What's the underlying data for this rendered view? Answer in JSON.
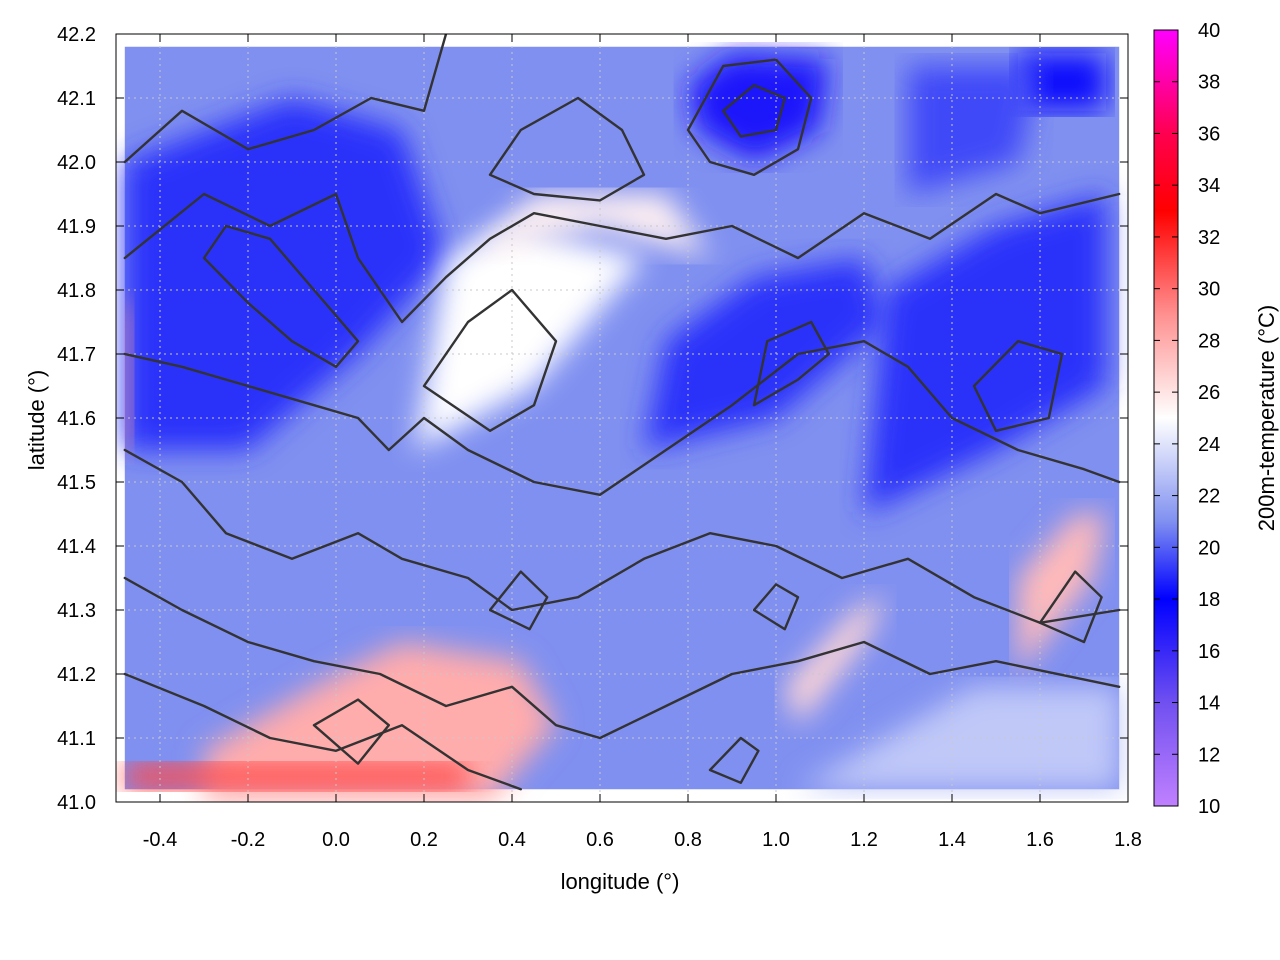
{
  "chart_data": {
    "type": "heatmap",
    "xlabel": "longitude (°)",
    "ylabel": "latitude (°)",
    "colorbar_label": "200m-temperature (°C)",
    "xlim": [
      -0.5,
      1.8
    ],
    "ylim": [
      41.0,
      42.2
    ],
    "x_ticks": [
      "-0.4",
      "-0.2",
      "0.0",
      "0.2",
      "0.4",
      "0.6",
      "0.8",
      "1.0",
      "1.2",
      "1.4",
      "1.6",
      "1.8"
    ],
    "x_tick_values": [
      -0.4,
      -0.2,
      0.0,
      0.2,
      0.4,
      0.6,
      0.8,
      1.0,
      1.2,
      1.4,
      1.6,
      1.8
    ],
    "y_ticks": [
      "41.0",
      "41.1",
      "41.2",
      "41.3",
      "41.4",
      "41.5",
      "41.6",
      "41.7",
      "41.8",
      "41.9",
      "42.0",
      "42.1",
      "42.2"
    ],
    "y_tick_values": [
      41.0,
      41.1,
      41.2,
      41.3,
      41.4,
      41.5,
      41.6,
      41.7,
      41.8,
      41.9,
      42.0,
      42.1,
      42.2
    ],
    "colorbar": {
      "range": [
        10,
        40
      ],
      "ticks": [
        "10",
        "12",
        "14",
        "16",
        "18",
        "20",
        "22",
        "24",
        "26",
        "28",
        "30",
        "32",
        "34",
        "36",
        "38",
        "40"
      ],
      "tick_values": [
        10,
        12,
        14,
        16,
        18,
        20,
        22,
        24,
        26,
        28,
        30,
        32,
        34,
        36,
        38,
        40
      ],
      "stops": [
        {
          "value": 10,
          "color": "#c080ff"
        },
        {
          "value": 14,
          "color": "#7050f0"
        },
        {
          "value": 18,
          "color": "#0000ff"
        },
        {
          "value": 21,
          "color": "#8090f0"
        },
        {
          "value": 25,
          "color": "#ffffff"
        },
        {
          "value": 29,
          "color": "#ff9090"
        },
        {
          "value": 33,
          "color": "#ff0000"
        },
        {
          "value": 36,
          "color": "#ff0050"
        },
        {
          "value": 40,
          "color": "#ff00ff"
        }
      ]
    },
    "grid": true,
    "contours": true,
    "regions": [
      {
        "name": "domain-background",
        "temperature": 21,
        "polygon": [
          [
            -0.48,
            41.02
          ],
          [
            1.78,
            41.02
          ],
          [
            1.78,
            42.18
          ],
          [
            -0.48,
            42.18
          ]
        ]
      },
      {
        "name": "northwest-cool-zone",
        "temperature": 19,
        "polygon": [
          [
            -0.48,
            41.55
          ],
          [
            -0.2,
            41.55
          ],
          [
            0.05,
            41.7
          ],
          [
            0.25,
            41.85
          ],
          [
            0.15,
            42.05
          ],
          [
            -0.1,
            42.1
          ],
          [
            -0.48,
            42.0
          ]
        ]
      },
      {
        "name": "central-cool-zone",
        "temperature": 19,
        "polygon": [
          [
            0.7,
            41.55
          ],
          [
            1.0,
            41.6
          ],
          [
            1.25,
            41.75
          ],
          [
            1.2,
            41.85
          ],
          [
            0.95,
            41.82
          ],
          [
            0.75,
            41.72
          ]
        ]
      },
      {
        "name": "east-cool-zone",
        "temperature": 19,
        "polygon": [
          [
            1.2,
            41.45
          ],
          [
            1.5,
            41.55
          ],
          [
            1.75,
            41.65
          ],
          [
            1.75,
            41.95
          ],
          [
            1.5,
            41.9
          ],
          [
            1.25,
            41.8
          ]
        ]
      },
      {
        "name": "north-cold-core",
        "temperature": 17,
        "polygon": [
          [
            0.82,
            42.05
          ],
          [
            0.95,
            42.0
          ],
          [
            1.1,
            42.05
          ],
          [
            1.12,
            42.16
          ],
          [
            0.9,
            42.17
          ],
          [
            0.8,
            42.12
          ]
        ]
      },
      {
        "name": "northeast-cold-core",
        "temperature": 17.5,
        "polygon": [
          [
            1.55,
            42.08
          ],
          [
            1.75,
            42.08
          ],
          [
            1.75,
            42.17
          ],
          [
            1.55,
            42.17
          ]
        ]
      },
      {
        "name": "northeast-cool-zone",
        "temperature": 19.5,
        "polygon": [
          [
            1.3,
            41.95
          ],
          [
            1.55,
            42.0
          ],
          [
            1.6,
            42.15
          ],
          [
            1.3,
            42.15
          ]
        ]
      },
      {
        "name": "central-warm-band",
        "temperature": 25,
        "polygon": [
          [
            0.18,
            41.55
          ],
          [
            0.45,
            41.65
          ],
          [
            0.7,
            41.85
          ],
          [
            0.4,
            41.9
          ],
          [
            0.25,
            41.85
          ]
        ]
      },
      {
        "name": "north-warm-band",
        "temperature": 25.5,
        "polygon": [
          [
            0.3,
            41.85
          ],
          [
            0.6,
            41.9
          ],
          [
            0.85,
            41.85
          ],
          [
            0.75,
            41.95
          ],
          [
            0.45,
            41.95
          ]
        ]
      },
      {
        "name": "south-warm-patch",
        "temperature": 28,
        "polygon": [
          [
            -0.3,
            41.0
          ],
          [
            0.35,
            41.0
          ],
          [
            0.5,
            41.12
          ],
          [
            0.42,
            41.22
          ],
          [
            0.15,
            41.25
          ],
          [
            -0.05,
            41.18
          ],
          [
            -0.3,
            41.08
          ]
        ]
      },
      {
        "name": "southwest-warm-corner",
        "temperature": 31,
        "polygon": [
          [
            -0.48,
            41.02
          ],
          [
            0.3,
            41.02
          ],
          [
            0.3,
            41.06
          ],
          [
            -0.48,
            41.06
          ]
        ]
      },
      {
        "name": "west-edge-warm-strip",
        "temperature": 29,
        "polygon": [
          [
            -0.48,
            41.55
          ],
          [
            -0.46,
            41.55
          ],
          [
            -0.46,
            41.78
          ],
          [
            -0.48,
            41.78
          ]
        ]
      },
      {
        "name": "southeast-warm-patch",
        "temperature": 27.5,
        "polygon": [
          [
            1.55,
            41.2
          ],
          [
            1.72,
            41.35
          ],
          [
            1.75,
            41.45
          ],
          [
            1.68,
            41.45
          ],
          [
            1.55,
            41.35
          ]
        ]
      },
      {
        "name": "southeast-sea",
        "temperature": 23,
        "polygon": [
          [
            1.05,
            41.02
          ],
          [
            1.78,
            41.02
          ],
          [
            1.78,
            41.18
          ],
          [
            1.45,
            41.18
          ],
          [
            1.25,
            41.1
          ]
        ]
      },
      {
        "name": "coastal-warm-strip",
        "temperature": 26.5,
        "polygon": [
          [
            1.05,
            41.12
          ],
          [
            1.2,
            41.25
          ],
          [
            1.25,
            41.32
          ],
          [
            1.18,
            41.3
          ],
          [
            1.02,
            41.18
          ]
        ]
      }
    ],
    "contour_lines": [
      [
        [
          -0.48,
          42.0
        ],
        [
          -0.35,
          42.08
        ],
        [
          -0.2,
          42.02
        ],
        [
          -0.05,
          42.05
        ],
        [
          0.08,
          42.1
        ],
        [
          0.2,
          42.08
        ],
        [
          0.25,
          42.2
        ]
      ],
      [
        [
          -0.48,
          41.85
        ],
        [
          -0.3,
          41.95
        ],
        [
          -0.15,
          41.9
        ],
        [
          0.0,
          41.95
        ],
        [
          0.05,
          41.85
        ],
        [
          0.15,
          41.75
        ],
        [
          0.25,
          41.82
        ],
        [
          0.35,
          41.88
        ],
        [
          0.45,
          41.92
        ],
        [
          0.6,
          41.9
        ],
        [
          0.75,
          41.88
        ],
        [
          0.9,
          41.9
        ],
        [
          1.05,
          41.85
        ],
        [
          1.2,
          41.92
        ],
        [
          1.35,
          41.88
        ],
        [
          1.5,
          41.95
        ],
        [
          1.6,
          41.92
        ],
        [
          1.78,
          41.95
        ]
      ],
      [
        [
          -0.48,
          41.7
        ],
        [
          -0.35,
          41.68
        ],
        [
          -0.2,
          41.65
        ],
        [
          -0.05,
          41.62
        ],
        [
          0.05,
          41.6
        ],
        [
          0.12,
          41.55
        ],
        [
          0.2,
          41.6
        ],
        [
          0.3,
          41.55
        ],
        [
          0.45,
          41.5
        ],
        [
          0.6,
          41.48
        ],
        [
          0.75,
          41.55
        ],
        [
          0.9,
          41.62
        ],
        [
          1.05,
          41.7
        ],
        [
          1.2,
          41.72
        ],
        [
          1.3,
          41.68
        ],
        [
          1.4,
          41.6
        ],
        [
          1.55,
          41.55
        ],
        [
          1.7,
          41.52
        ],
        [
          1.78,
          41.5
        ]
      ],
      [
        [
          -0.48,
          41.55
        ],
        [
          -0.35,
          41.5
        ],
        [
          -0.25,
          41.42
        ],
        [
          -0.1,
          41.38
        ],
        [
          0.05,
          41.42
        ],
        [
          0.15,
          41.38
        ],
        [
          0.3,
          41.35
        ],
        [
          0.4,
          41.3
        ],
        [
          0.55,
          41.32
        ],
        [
          0.7,
          41.38
        ],
        [
          0.85,
          41.42
        ],
        [
          1.0,
          41.4
        ],
        [
          1.15,
          41.35
        ],
        [
          1.3,
          41.38
        ],
        [
          1.45,
          41.32
        ],
        [
          1.6,
          41.28
        ],
        [
          1.78,
          41.3
        ]
      ],
      [
        [
          -0.48,
          41.35
        ],
        [
          -0.35,
          41.3
        ],
        [
          -0.2,
          41.25
        ],
        [
          -0.05,
          41.22
        ],
        [
          0.1,
          41.2
        ],
        [
          0.25,
          41.15
        ],
        [
          0.4,
          41.18
        ],
        [
          0.5,
          41.12
        ],
        [
          0.6,
          41.1
        ],
        [
          0.75,
          41.15
        ],
        [
          0.9,
          41.2
        ],
        [
          1.05,
          41.22
        ],
        [
          1.2,
          41.25
        ],
        [
          1.35,
          41.2
        ],
        [
          1.5,
          41.22
        ],
        [
          1.78,
          41.18
        ]
      ],
      [
        [
          -0.48,
          41.2
        ],
        [
          -0.3,
          41.15
        ],
        [
          -0.15,
          41.1
        ],
        [
          0.0,
          41.08
        ],
        [
          0.15,
          41.12
        ],
        [
          0.3,
          41.05
        ],
        [
          0.42,
          41.02
        ]
      ],
      [
        [
          0.8,
          42.05
        ],
        [
          0.88,
          42.15
        ],
        [
          1.0,
          42.16
        ],
        [
          1.08,
          42.1
        ],
        [
          1.05,
          42.02
        ],
        [
          0.95,
          41.98
        ],
        [
          0.85,
          42.0
        ],
        [
          0.8,
          42.05
        ]
      ],
      [
        [
          0.88,
          42.08
        ],
        [
          0.95,
          42.12
        ],
        [
          1.02,
          42.1
        ],
        [
          1.0,
          42.05
        ],
        [
          0.92,
          42.04
        ],
        [
          0.88,
          42.08
        ]
      ],
      [
        [
          0.35,
          41.98
        ],
        [
          0.42,
          42.05
        ],
        [
          0.55,
          42.1
        ],
        [
          0.65,
          42.05
        ],
        [
          0.7,
          41.98
        ],
        [
          0.6,
          41.94
        ],
        [
          0.45,
          41.95
        ],
        [
          0.35,
          41.98
        ]
      ],
      [
        [
          -0.3,
          41.85
        ],
        [
          -0.2,
          41.78
        ],
        [
          -0.1,
          41.72
        ],
        [
          0.0,
          41.68
        ],
        [
          0.05,
          41.72
        ],
        [
          -0.05,
          41.8
        ],
        [
          -0.15,
          41.88
        ],
        [
          -0.25,
          41.9
        ],
        [
          -0.3,
          41.85
        ]
      ],
      [
        [
          0.95,
          41.62
        ],
        [
          1.05,
          41.66
        ],
        [
          1.12,
          41.7
        ],
        [
          1.08,
          41.75
        ],
        [
          0.98,
          41.72
        ],
        [
          0.95,
          41.62
        ]
      ],
      [
        [
          0.2,
          41.65
        ],
        [
          0.3,
          41.75
        ],
        [
          0.4,
          41.8
        ],
        [
          0.5,
          41.72
        ],
        [
          0.45,
          41.62
        ],
        [
          0.35,
          41.58
        ],
        [
          0.2,
          41.65
        ]
      ],
      [
        [
          1.45,
          41.65
        ],
        [
          1.55,
          41.72
        ],
        [
          1.65,
          41.7
        ],
        [
          1.62,
          41.6
        ],
        [
          1.5,
          41.58
        ],
        [
          1.45,
          41.65
        ]
      ],
      [
        [
          1.6,
          41.28
        ],
        [
          1.68,
          41.36
        ],
        [
          1.74,
          41.32
        ],
        [
          1.7,
          41.25
        ],
        [
          1.6,
          41.28
        ]
      ],
      [
        [
          0.95,
          41.3
        ],
        [
          1.0,
          41.34
        ],
        [
          1.05,
          41.32
        ],
        [
          1.02,
          41.27
        ],
        [
          0.95,
          41.3
        ]
      ],
      [
        [
          -0.05,
          41.12
        ],
        [
          0.05,
          41.16
        ],
        [
          0.12,
          41.12
        ],
        [
          0.05,
          41.06
        ],
        [
          -0.05,
          41.12
        ]
      ],
      [
        [
          0.35,
          41.3
        ],
        [
          0.42,
          41.36
        ],
        [
          0.48,
          41.32
        ],
        [
          0.44,
          41.27
        ],
        [
          0.35,
          41.3
        ]
      ],
      [
        [
          0.85,
          41.05
        ],
        [
          0.92,
          41.1
        ],
        [
          0.96,
          41.08
        ],
        [
          0.92,
          41.03
        ],
        [
          0.85,
          41.05
        ]
      ]
    ]
  }
}
